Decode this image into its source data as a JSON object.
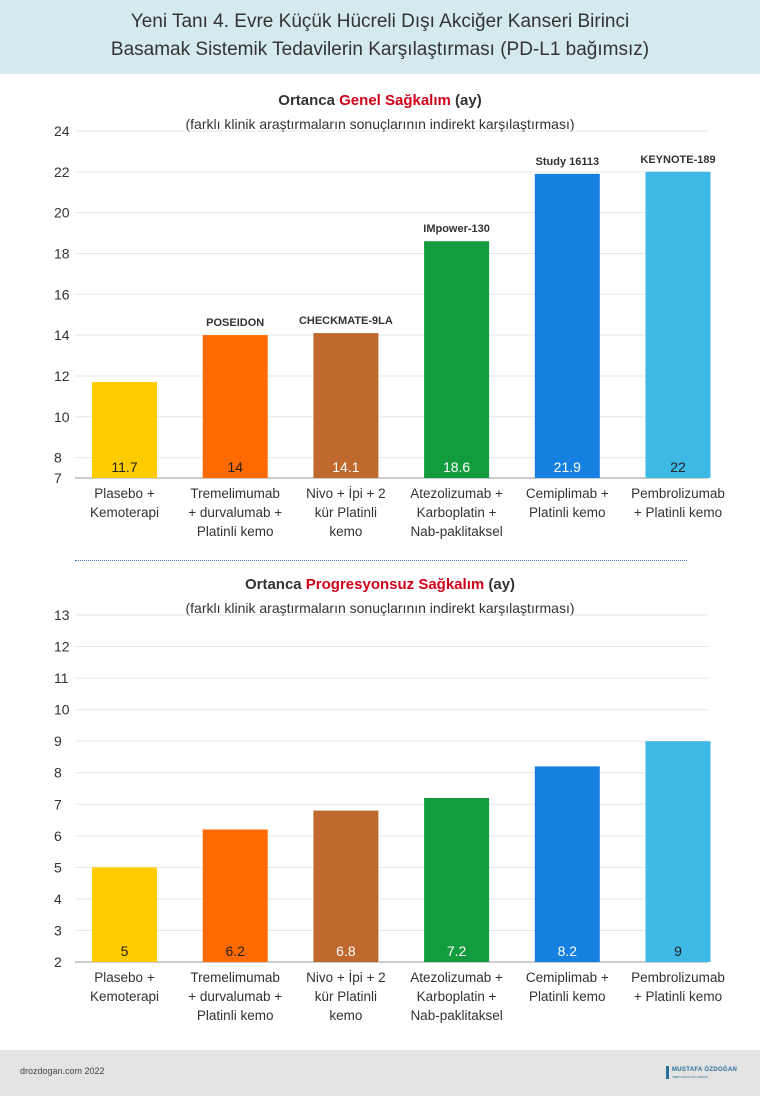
{
  "header": {
    "title_line1": "Yeni Tanı 4. Evre Küçük Hücreli Dışı Akciğer Kanseri Birinci",
    "title_line2": "Basamak Sistemik Tedavilerin Karşılaştırması (PD-L1 bağımsız)"
  },
  "chart_data": [
    {
      "type": "bar",
      "title_prefix": "Ortanca ",
      "title_highlight": "Genel Sağkalım",
      "title_suffix": " (ay)",
      "subtitle": "(farklı klinik araştırmaların sonuçlarının indirekt karşılaştırması)",
      "ylim": [
        7,
        24
      ],
      "yticks": [
        7,
        8,
        10,
        12,
        14,
        16,
        18,
        20,
        22,
        24
      ],
      "categories": [
        [
          "Plasebo +",
          "Kemoterapi"
        ],
        [
          "Tremelimumab",
          "+ durvalumab +",
          "Platinli kemo"
        ],
        [
          "Nivo + İpi + 2",
          "kür Platinli",
          "kemo"
        ],
        [
          "Atezolizumab +",
          "Karboplatin +",
          "Nab-paklitaksel"
        ],
        [
          "Cemiplimab +",
          "Platinli kemo"
        ],
        [
          "Pembrolizumab",
          "+ Platinli kemo"
        ]
      ],
      "values": [
        11.7,
        14,
        14.1,
        18.6,
        21.9,
        22
      ],
      "value_labels": [
        "11.7",
        "14",
        "14.1",
        "18.6",
        "21.9",
        "22"
      ],
      "study_labels": [
        "",
        "POSEIDON",
        "CHECKMATE-9LA",
        "IMpower-130",
        "Study 16113",
        "KEYNOTE-189"
      ],
      "colors": [
        "#ffcc00",
        "#ff6a00",
        "#c0692f",
        "#139c3e",
        "#1580e0",
        "#3eb9e6"
      ],
      "label_colors": [
        "#222222",
        "#222222",
        "#ffffff",
        "#ffffff",
        "#ffffff",
        "#222222"
      ]
    },
    {
      "type": "bar",
      "title_prefix": "Ortanca ",
      "title_highlight": "Progresyonsuz Sağkalım",
      "title_suffix": " (ay)",
      "subtitle": "(farklı klinik araştırmaların sonuçlarının indirekt karşılaştırması)",
      "ylim": [
        2,
        13
      ],
      "yticks": [
        2,
        3,
        4,
        5,
        6,
        7,
        8,
        9,
        10,
        11,
        12,
        13
      ],
      "categories": [
        [
          "Plasebo +",
          "Kemoterapi"
        ],
        [
          "Tremelimumab",
          "+ durvalumab +",
          "Platinli kemo"
        ],
        [
          "Nivo + İpi + 2",
          "kür Platinli",
          "kemo"
        ],
        [
          "Atezolizumab +",
          "Karboplatin +",
          "Nab-paklitaksel"
        ],
        [
          "Cemiplimab +",
          "Platinli kemo"
        ],
        [
          "Pembrolizumab",
          "+ Platinli kemo"
        ]
      ],
      "values": [
        5,
        6.2,
        6.8,
        7.2,
        8.2,
        9
      ],
      "value_labels": [
        "5",
        "6.2",
        "6.8",
        "7.2",
        "8.2",
        "9"
      ],
      "study_labels": [
        "",
        "",
        "",
        "",
        "",
        ""
      ],
      "colors": [
        "#ffcc00",
        "#ff6a00",
        "#c0692f",
        "#139c3e",
        "#1580e0",
        "#3eb9e6"
      ],
      "label_colors": [
        "#222222",
        "#222222",
        "#ffffff",
        "#ffffff",
        "#ffffff",
        "#222222"
      ]
    }
  ],
  "footer": {
    "site": "drozdogan.com 2022",
    "logo_text": "MUSTAFA ÖZDOĞAN",
    "logo_sub": "TIBBİ ONKOLOJİ UZMANI"
  }
}
